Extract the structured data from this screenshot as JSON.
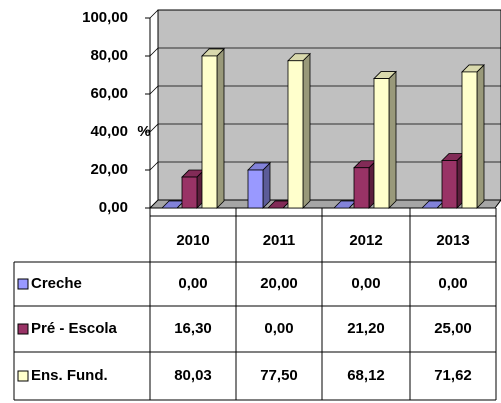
{
  "chart_data": {
    "type": "bar3d",
    "y_label": "%",
    "categories": [
      "2010",
      "2011",
      "2012",
      "2013"
    ],
    "series": [
      {
        "name": "Creche",
        "color": "#9999ff",
        "values": [
          0,
          20,
          0,
          0
        ],
        "value_labels": [
          "0,00",
          "20,00",
          "0,00",
          "0,00"
        ]
      },
      {
        "name": "Pré - Escola",
        "color": "#993366",
        "values": [
          16.3,
          0,
          21.2,
          25
        ],
        "value_labels": [
          "16,30",
          "0,00",
          "21,20",
          "25,00"
        ]
      },
      {
        "name": "Ens. Fund.",
        "color": "#ffffcc",
        "values": [
          80.03,
          77.5,
          68.12,
          71.62
        ],
        "value_labels": [
          "80,03",
          "77,50",
          "68,12",
          "71,62"
        ]
      }
    ],
    "ylim": [
      0,
      100
    ],
    "yticks": [
      {
        "value": 0,
        "label": "0,00"
      },
      {
        "value": 20,
        "label": "20,00"
      },
      {
        "value": 40,
        "label": "40,00"
      },
      {
        "value": 60,
        "label": "60,00"
      },
      {
        "value": 80,
        "label": "80,00"
      },
      {
        "value": 100,
        "label": "100,00"
      }
    ],
    "grid": true
  }
}
